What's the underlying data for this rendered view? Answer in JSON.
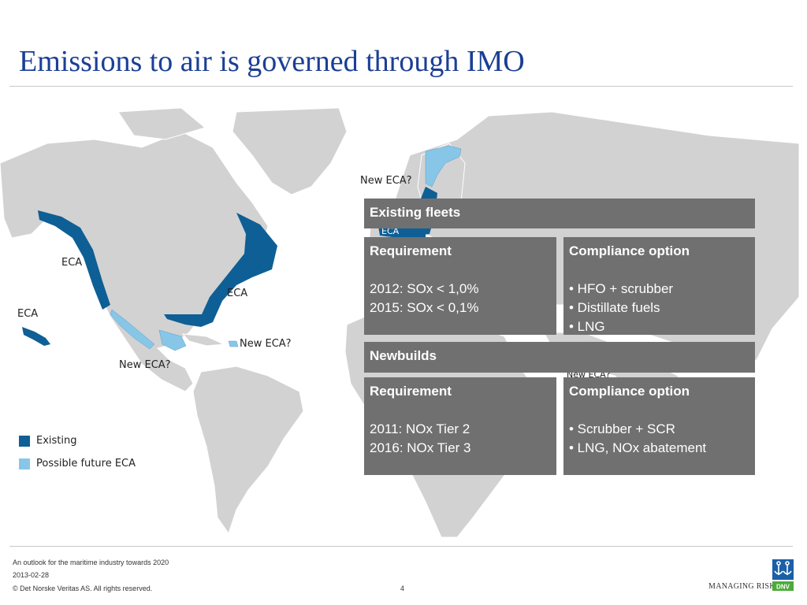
{
  "slide": {
    "title": "Emissions to air is governed through IMO"
  },
  "map": {
    "labels": {
      "eca_west": "ECA",
      "eca_hawaii": "ECA",
      "eca_east": "ECA",
      "new_eca_mexico": "New ECA?",
      "new_eca_caribbean": "New ECA?",
      "new_eca_norway": "New ECA?",
      "eca_baltic": "ECA",
      "new_eca_med": "New ECA?"
    },
    "legend": [
      {
        "label": "Existing",
        "color": "#0e5f95"
      },
      {
        "label": "Possible future ECA",
        "color": "#88c6e8"
      }
    ],
    "colors": {
      "land": "#d2d2d2",
      "existing_eca": "#0e5f95",
      "future_eca": "#88c6e8"
    }
  },
  "existing_fleets": {
    "heading": "Existing fleets",
    "requirement": {
      "heading": "Requirement",
      "lines": [
        "2012: SOx < 1,0%",
        "2015: SOx < 0,1%"
      ]
    },
    "compliance": {
      "heading": "Compliance option",
      "lines": [
        "• HFO + scrubber",
        "• Distillate fuels",
        "• LNG"
      ]
    }
  },
  "newbuilds": {
    "heading": "Newbuilds",
    "requirement": {
      "heading": "Requirement",
      "lines": [
        "2011: NOx Tier 2",
        "2016: NOx Tier 3"
      ]
    },
    "compliance": {
      "heading": "Compliance option",
      "lines": [
        "• Scrubber + SCR",
        "• LNG, NOx abatement"
      ]
    }
  },
  "box_color": "#707070",
  "footer": {
    "line1": "An outlook for the maritime industry towards 2020",
    "date": "2013-02-28",
    "copyright": "© Det Norske Veritas AS. All rights reserved.",
    "page_number": "4",
    "tagline": "MANAGING RISK",
    "logo_text": "DNV"
  }
}
